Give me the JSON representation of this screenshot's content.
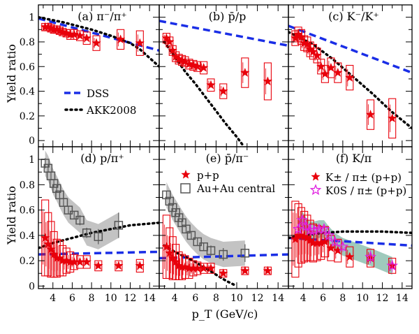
{
  "figure": {
    "ylabel": "Yield ratio",
    "xlabel": "p_T (GeV/c)",
    "xticks": [
      "4",
      "6",
      "8",
      "10",
      "12",
      "14"
    ],
    "yticks": [
      "0",
      "0.2",
      "0.4",
      "0.6",
      "0.8",
      "1"
    ],
    "colors": {
      "dss": "#1a2ee6",
      "akk": "#000000",
      "pp": "#e8000b",
      "auau": "#555555",
      "auau_band": "#b8b8b8",
      "k0s": "#e020e0",
      "kaon_band": "#7fb8a6"
    }
  },
  "legends": {
    "model": {
      "dss": "DSS",
      "akk": "AKK2008"
    },
    "data": {
      "pp": "p+p",
      "auau": "Au+Au central"
    },
    "kaon": {
      "kpm": "K± / π± (p+p)",
      "k0s": "K0S / π± (p+p)"
    }
  },
  "chart_data": [
    {
      "type": "scatter",
      "panel": "a",
      "title": "(a) π⁻/π⁺",
      "xlim": [
        2.5,
        15
      ],
      "ylim": [
        -0.05,
        1.1
      ],
      "series": [
        {
          "name": "p+p",
          "x": [
            3.2,
            3.5,
            3.8,
            4.1,
            4.4,
            4.7,
            5.0,
            5.4,
            5.8,
            6.2,
            6.8,
            7.5,
            8.5,
            11.0,
            13.0
          ],
          "y": [
            0.92,
            0.92,
            0.91,
            0.9,
            0.9,
            0.89,
            0.88,
            0.87,
            0.86,
            0.86,
            0.85,
            0.83,
            0.79,
            0.82,
            0.79
          ],
          "sys": [
            0.03,
            0.03,
            0.03,
            0.03,
            0.03,
            0.03,
            0.03,
            0.03,
            0.04,
            0.04,
            0.04,
            0.05,
            0.06,
            0.08,
            0.1
          ]
        },
        {
          "name": "DSS",
          "x": [
            2.5,
            15
          ],
          "y": [
            0.99,
            0.73
          ]
        },
        {
          "name": "AKK2008",
          "x": [
            2.5,
            5,
            8,
            10,
            12,
            13,
            15
          ],
          "y": [
            1.0,
            0.96,
            0.9,
            0.85,
            0.79,
            0.74,
            0.6
          ]
        }
      ]
    },
    {
      "type": "scatter",
      "panel": "b",
      "title": "(b) p̄/p",
      "xlim": [
        2.5,
        15
      ],
      "ylim": [
        -0.05,
        1.1
      ],
      "series": [
        {
          "name": "p+p",
          "x": [
            3.2,
            3.5,
            3.8,
            4.1,
            4.4,
            4.7,
            5.0,
            5.4,
            5.8,
            6.2,
            6.8,
            7.5,
            8.7,
            10.8,
            13.0
          ],
          "y": [
            0.83,
            0.8,
            0.73,
            0.68,
            0.66,
            0.65,
            0.64,
            0.62,
            0.61,
            0.6,
            0.59,
            0.45,
            0.4,
            0.55,
            0.48
          ],
          "sys": [
            0.04,
            0.04,
            0.04,
            0.04,
            0.04,
            0.04,
            0.04,
            0.04,
            0.04,
            0.04,
            0.05,
            0.05,
            0.06,
            0.12,
            0.15
          ]
        },
        {
          "name": "DSS",
          "x": [
            2.5,
            15
          ],
          "y": [
            0.97,
            0.77
          ]
        },
        {
          "name": "AKK2008",
          "x": [
            3,
            4,
            5,
            6,
            7,
            8,
            9,
            10,
            10.7
          ],
          "y": [
            0.8,
            0.68,
            0.56,
            0.46,
            0.35,
            0.24,
            0.13,
            0.03,
            -0.05
          ]
        }
      ]
    },
    {
      "type": "scatter",
      "panel": "c",
      "title": "(c) K⁻/K⁺",
      "xlim": [
        2.5,
        15
      ],
      "ylim": [
        -0.05,
        1.1
      ],
      "series": [
        {
          "name": "p+p",
          "x": [
            3.2,
            3.5,
            3.8,
            4.1,
            4.4,
            4.7,
            5.0,
            5.4,
            5.8,
            6.2,
            6.8,
            7.5,
            8.7,
            10.8,
            13.0
          ],
          "y": [
            0.83,
            0.86,
            0.84,
            0.79,
            0.78,
            0.74,
            0.72,
            0.69,
            0.6,
            0.54,
            0.59,
            0.55,
            0.51,
            0.21,
            0.18
          ],
          "sys": [
            0.06,
            0.06,
            0.06,
            0.06,
            0.06,
            0.06,
            0.06,
            0.06,
            0.06,
            0.07,
            0.08,
            0.08,
            0.1,
            0.12,
            0.16
          ]
        },
        {
          "name": "DSS",
          "x": [
            2.5,
            15
          ],
          "y": [
            0.93,
            0.55
          ]
        },
        {
          "name": "AKK2008",
          "x": [
            2.5,
            5,
            7,
            9,
            11,
            13,
            15
          ],
          "y": [
            0.88,
            0.78,
            0.66,
            0.52,
            0.38,
            0.23,
            0.1
          ]
        }
      ]
    },
    {
      "type": "scatter",
      "panel": "d",
      "title": "(d) p/π⁺",
      "xlim": [
        2.5,
        15
      ],
      "ylim": [
        -0.02,
        1.1
      ],
      "series": [
        {
          "name": "p+p",
          "x": [
            3.2,
            3.5,
            3.8,
            4.1,
            4.4,
            4.7,
            5.0,
            5.4,
            5.8,
            6.2,
            6.8,
            7.5,
            8.7,
            10.8,
            13.0
          ],
          "y": [
            0.38,
            0.33,
            0.29,
            0.25,
            0.22,
            0.22,
            0.2,
            0.2,
            0.19,
            0.19,
            0.19,
            0.19,
            0.16,
            0.16,
            0.16
          ],
          "sys": [
            0.3,
            0.25,
            0.22,
            0.18,
            0.15,
            0.14,
            0.12,
            0.1,
            0.08,
            0.06,
            0.05,
            0.05,
            0.04,
            0.04,
            0.05
          ]
        },
        {
          "name": "Au+Au central",
          "x": [
            3.2,
            3.5,
            3.8,
            4.1,
            4.4,
            4.7,
            5.1,
            5.6,
            6.2,
            6.8,
            7.5,
            8.7,
            10.8
          ],
          "y": [
            0.97,
            0.93,
            0.87,
            0.81,
            0.77,
            0.72,
            0.66,
            0.6,
            0.56,
            0.52,
            0.42,
            0.39,
            0.48
          ],
          "err": [
            0.04,
            0.03,
            0.03,
            0.03,
            0.03,
            0.03,
            0.03,
            0.03,
            0.03,
            0.04,
            0.04,
            0.06,
            0.1
          ]
        },
        {
          "name": "DSS",
          "x": [
            2.5,
            15
          ],
          "y": [
            0.25,
            0.27
          ]
        },
        {
          "name": "AKK2008",
          "x": [
            2.5,
            4,
            6,
            8,
            10,
            12,
            15
          ],
          "y": [
            0.3,
            0.34,
            0.38,
            0.42,
            0.45,
            0.48,
            0.5
          ]
        }
      ]
    },
    {
      "type": "scatter",
      "panel": "e",
      "title": "(e) p̄/π⁻",
      "xlim": [
        2.5,
        15
      ],
      "ylim": [
        -0.02,
        1.1
      ],
      "series": [
        {
          "name": "p+p",
          "x": [
            3.2,
            3.5,
            3.8,
            4.1,
            4.4,
            4.7,
            5.0,
            5.4,
            5.8,
            6.2,
            6.8,
            7.5,
            8.7,
            10.8,
            13.0
          ],
          "y": [
            0.31,
            0.26,
            0.22,
            0.19,
            0.16,
            0.15,
            0.15,
            0.14,
            0.14,
            0.14,
            0.14,
            0.14,
            0.1,
            0.12,
            0.12
          ],
          "sys": [
            0.25,
            0.2,
            0.17,
            0.14,
            0.11,
            0.1,
            0.09,
            0.08,
            0.06,
            0.05,
            0.04,
            0.04,
            0.03,
            0.03,
            0.03
          ]
        },
        {
          "name": "Au+Au central",
          "x": [
            3.2,
            3.5,
            3.8,
            4.1,
            4.4,
            4.7,
            5.1,
            5.6,
            6.2,
            6.8,
            7.5,
            8.7,
            10.8
          ],
          "y": [
            0.72,
            0.67,
            0.62,
            0.58,
            0.54,
            0.5,
            0.45,
            0.4,
            0.35,
            0.31,
            0.28,
            0.25,
            0.26
          ],
          "err": [
            0.03,
            0.03,
            0.03,
            0.03,
            0.03,
            0.03,
            0.03,
            0.03,
            0.03,
            0.03,
            0.04,
            0.05,
            0.07
          ]
        },
        {
          "name": "DSS",
          "x": [
            2.5,
            15
          ],
          "y": [
            0.22,
            0.25
          ]
        },
        {
          "name": "AKK2008",
          "x": [
            3,
            4,
            5,
            6,
            7,
            8,
            9,
            10
          ],
          "y": [
            0.32,
            0.27,
            0.23,
            0.19,
            0.14,
            0.09,
            0.04,
            0.0
          ]
        }
      ]
    },
    {
      "type": "scatter",
      "panel": "f",
      "title": "(f) K/π",
      "xlim": [
        2.5,
        15
      ],
      "ylim": [
        -0.02,
        1.1
      ],
      "series": [
        {
          "name": "K± / π± (p+p)",
          "x": [
            3.2,
            3.5,
            3.8,
            4.1,
            4.4,
            4.7,
            5.0,
            5.4,
            5.8,
            6.2,
            6.8,
            7.5,
            8.7,
            10.8,
            13.0
          ],
          "y": [
            0.37,
            0.4,
            0.4,
            0.39,
            0.38,
            0.36,
            0.34,
            0.34,
            0.34,
            0.35,
            0.3,
            0.28,
            0.23,
            0.22,
            0.16
          ],
          "sys": [
            0.3,
            0.25,
            0.22,
            0.2,
            0.18,
            0.16,
            0.15,
            0.14,
            0.13,
            0.12,
            0.1,
            0.09,
            0.08,
            0.07,
            0.06
          ]
        },
        {
          "name": "K0S / π± (p+p)",
          "x": [
            3.5,
            3.9,
            4.3,
            4.7,
            5.1,
            5.6,
            6.1,
            6.6,
            7.2,
            8.0,
            10.8,
            13.0
          ],
          "y": [
            0.45,
            0.52,
            0.47,
            0.44,
            0.44,
            0.45,
            0.45,
            0.4,
            0.35,
            0.31,
            0.23,
            0.16
          ],
          "err": [
            0.04,
            0.04,
            0.04,
            0.04,
            0.04,
            0.04,
            0.04,
            0.04,
            0.04,
            0.04,
            0.05,
            0.05
          ]
        },
        {
          "name": "DSS",
          "x": [
            2.5,
            15
          ],
          "y": [
            0.38,
            0.32
          ]
        },
        {
          "name": "AKK2008",
          "x": [
            2.5,
            4,
            6,
            8,
            10,
            12,
            15
          ],
          "y": [
            0.38,
            0.4,
            0.42,
            0.43,
            0.43,
            0.43,
            0.42
          ]
        }
      ]
    }
  ]
}
